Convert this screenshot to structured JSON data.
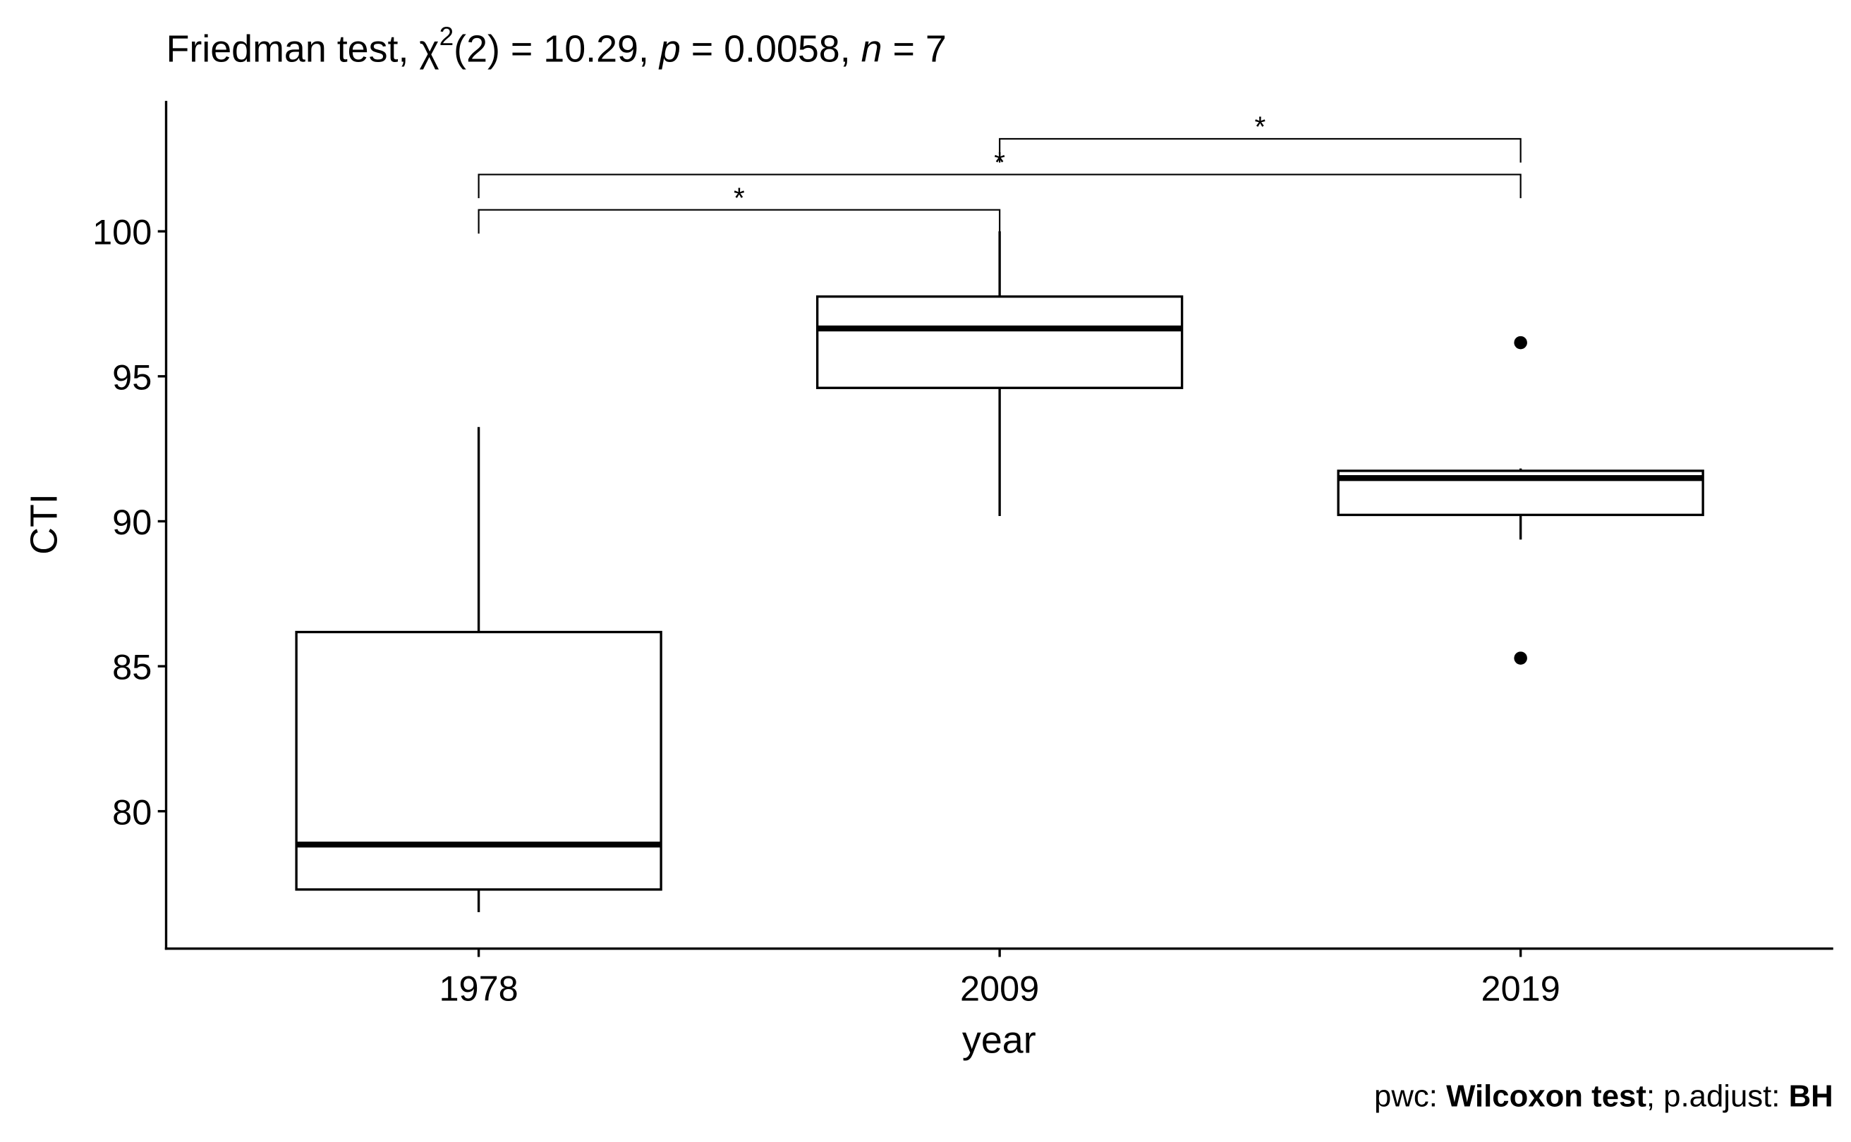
{
  "chart_data": {
    "type": "boxplot",
    "title_parts": [
      "Friedman test, ",
      "χ",
      "2",
      "(2) = 10.29, ",
      "p",
      " = 0.0058, ",
      "n",
      " = 7"
    ],
    "x_label": "year",
    "y_label": "CTI",
    "categories": [
      "1978",
      "2009",
      "2019"
    ],
    "boxes": [
      {
        "min": 76.52,
        "q1": 77.3,
        "median": 78.85,
        "q3": 86.18,
        "max": 93.25,
        "outliers": []
      },
      {
        "min": 90.18,
        "q1": 94.6,
        "median": 96.65,
        "q3": 97.75,
        "max": 100.0,
        "outliers": []
      },
      {
        "min": 89.37,
        "q1": 90.22,
        "median": 91.49,
        "q3": 91.74,
        "max": 91.82,
        "outliers": [
          96.16,
          85.28
        ]
      }
    ],
    "comparisons": [
      {
        "group1": 0,
        "group2": 1,
        "y": 100.74,
        "label": "*"
      },
      {
        "group1": 0,
        "group2": 2,
        "y": 101.96,
        "label": "*"
      },
      {
        "group1": 1,
        "group2": 2,
        "y": 103.19,
        "label": "*"
      }
    ],
    "ylim": [
      75.26,
      104.5
    ],
    "yticks": [
      80,
      85,
      90,
      95,
      100
    ],
    "caption_parts": [
      "pwc: ",
      "Wilcoxon test",
      "; p.adjust: ",
      "BH"
    ]
  }
}
